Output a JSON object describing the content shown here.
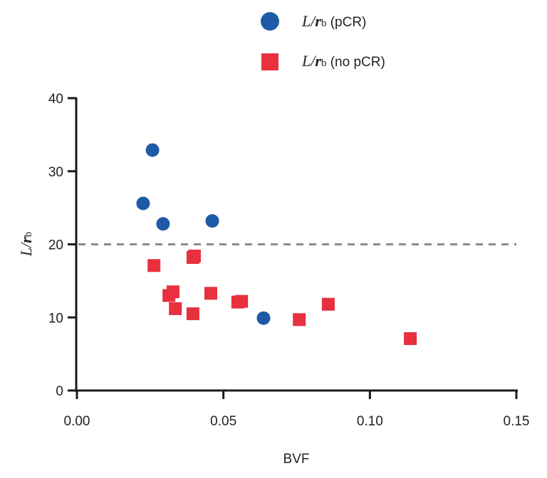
{
  "chart_data": {
    "type": "scatter",
    "title": "",
    "xlabel": "BVF",
    "ylabel": {
      "main": "L/",
      "bold": "r",
      "sub": "b"
    },
    "xlim": [
      0,
      0.15
    ],
    "ylim": [
      0,
      40
    ],
    "xticks": [
      0,
      0.05,
      0.1,
      0.15
    ],
    "xtick_labels": [
      "0.00",
      "0.05",
      "0.10",
      "0.15"
    ],
    "yticks": [
      0,
      10,
      20,
      30,
      40
    ],
    "ytick_labels": [
      "0",
      "10",
      "20",
      "30",
      "40"
    ],
    "grid": false,
    "legend_position": "top-center",
    "reference_line": {
      "y": 20,
      "style": "dashed",
      "color": "#8c8c8c"
    },
    "series": [
      {
        "name": "L/rb (pCR)",
        "legend": {
          "italic": "L/",
          "bold": "r",
          "sub": "b",
          "rest": " (pCR)"
        },
        "marker": "circle",
        "color": "#1f5aa6",
        "points": [
          [
            0.0258,
            32.9
          ],
          [
            0.0226,
            25.6
          ],
          [
            0.0294,
            22.8
          ],
          [
            0.0462,
            23.2
          ],
          [
            0.0637,
            9.9
          ]
        ]
      },
      {
        "name": "L/rb (no pCR)",
        "legend": {
          "italic": "L/",
          "bold": "r",
          "sub": "b",
          "rest": " (no pCR)"
        },
        "marker": "square",
        "color": "#e8303f",
        "points": [
          [
            0.0263,
            17.1
          ],
          [
            0.0396,
            18.2
          ],
          [
            0.0401,
            18.4
          ],
          [
            0.0314,
            13.0
          ],
          [
            0.0328,
            13.5
          ],
          [
            0.0336,
            11.2
          ],
          [
            0.0396,
            10.5
          ],
          [
            0.0457,
            13.3
          ],
          [
            0.0549,
            12.1
          ],
          [
            0.0562,
            12.2
          ],
          [
            0.0759,
            9.7
          ],
          [
            0.0858,
            11.8
          ],
          [
            0.1138,
            7.1
          ]
        ]
      }
    ]
  }
}
